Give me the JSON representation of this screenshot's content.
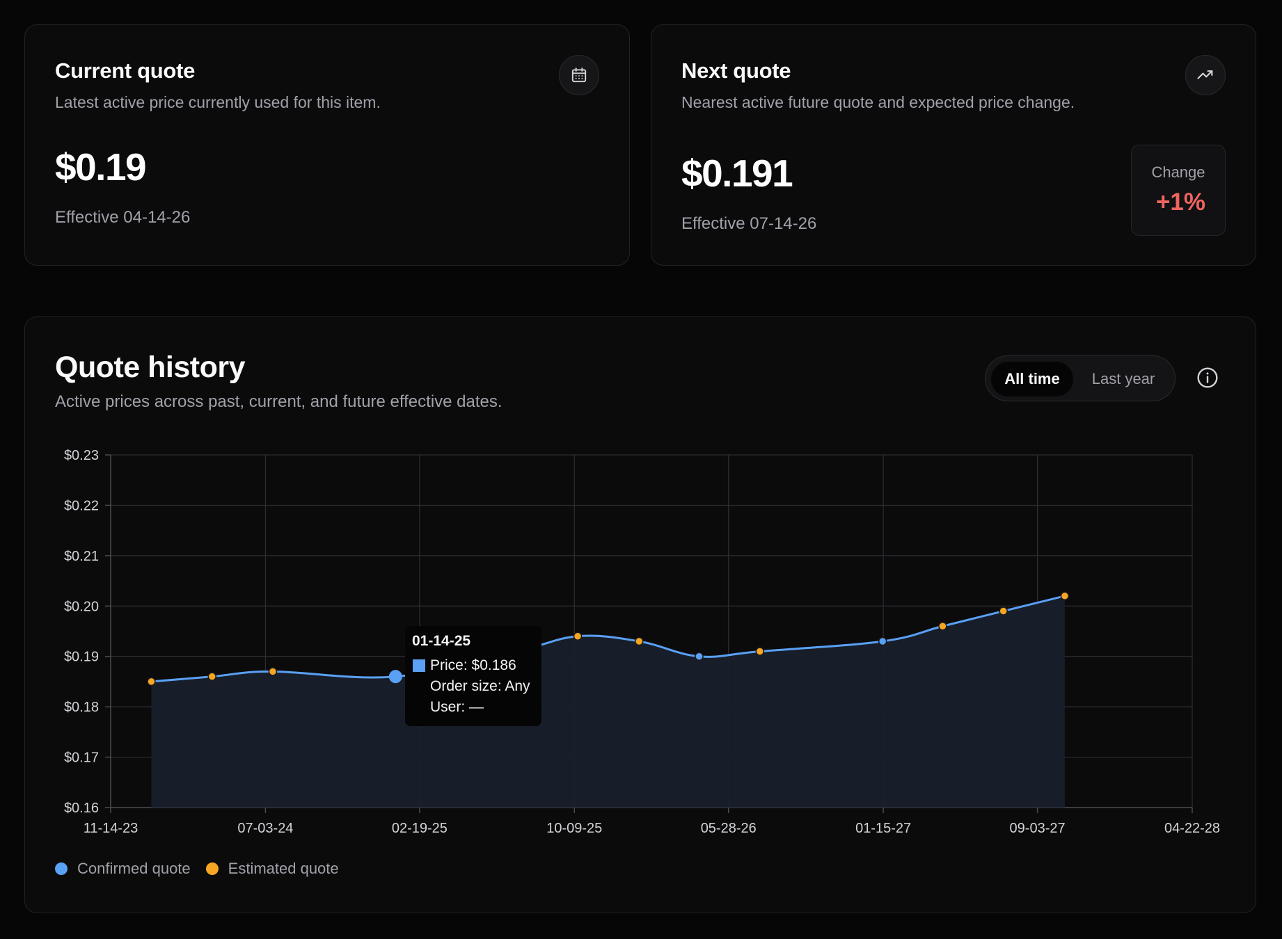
{
  "current_quote": {
    "title": "Current quote",
    "subtitle": "Latest active price currently used for this item.",
    "price": "$0.19",
    "effective": "Effective 04-14-26",
    "icon": "calendar-icon"
  },
  "next_quote": {
    "title": "Next quote",
    "subtitle": "Nearest active future quote and expected price change.",
    "price": "$0.191",
    "effective": "Effective 07-14-26",
    "icon": "trending-up-icon",
    "change_label": "Change",
    "change_value": "+1%",
    "change_color": "#f0645f"
  },
  "history": {
    "title": "Quote history",
    "subtitle": "Active prices across past, current, and future effective dates.",
    "range_options": [
      "All time",
      "Last year"
    ],
    "selected_range": "All time",
    "info_icon": "info-icon",
    "legend": [
      {
        "label": "Confirmed quote",
        "color": "#5aa0f5"
      },
      {
        "label": "Estimated quote",
        "color": "#f5a623"
      }
    ],
    "tooltip": {
      "date": "01-14-25",
      "price": "Price: $0.186",
      "order_size": "Order size: Any",
      "user": "User: —"
    }
  },
  "chart_data": {
    "type": "area",
    "xlabel": "",
    "ylabel": "",
    "ylim": [
      0.16,
      0.23
    ],
    "xlim": [
      "11-14-23",
      "04-22-28"
    ],
    "y_ticks": [
      0.23,
      0.22,
      0.21,
      0.2,
      0.19,
      0.18,
      0.17,
      0.16
    ],
    "y_tick_labels": [
      "$0.23",
      "$0.22",
      "$0.21",
      "$0.20",
      "$0.19",
      "$0.18",
      "$0.17",
      "$0.16"
    ],
    "x_ticks": [
      "11-14-23",
      "07-03-24",
      "02-19-25",
      "10-09-25",
      "05-28-26",
      "01-15-27",
      "09-03-27",
      "04-22-28"
    ],
    "grid": true,
    "line_color": "#5aa0f5",
    "fill_color": "#18202c",
    "series": [
      {
        "points": [
          {
            "x": "01-14-24",
            "y": 0.185,
            "kind": "estimated"
          },
          {
            "x": "04-14-24",
            "y": 0.186,
            "kind": "estimated"
          },
          {
            "x": "07-14-24",
            "y": 0.187,
            "kind": "estimated"
          },
          {
            "x": "01-14-25",
            "y": 0.186,
            "kind": "confirmed"
          },
          {
            "x": "07-14-25",
            "y": 0.191,
            "kind": "confirmed"
          },
          {
            "x": "10-14-25",
            "y": 0.194,
            "kind": "estimated"
          },
          {
            "x": "01-14-26",
            "y": 0.193,
            "kind": "estimated"
          },
          {
            "x": "04-14-26",
            "y": 0.19,
            "kind": "confirmed"
          },
          {
            "x": "07-14-26",
            "y": 0.191,
            "kind": "estimated"
          },
          {
            "x": "01-14-27",
            "y": 0.193,
            "kind": "confirmed"
          },
          {
            "x": "04-14-27",
            "y": 0.196,
            "kind": "estimated"
          },
          {
            "x": "07-14-27",
            "y": 0.199,
            "kind": "estimated"
          },
          {
            "x": "10-14-27",
            "y": 0.202,
            "kind": "estimated"
          }
        ]
      }
    ],
    "highlighted_point": "01-14-25"
  }
}
